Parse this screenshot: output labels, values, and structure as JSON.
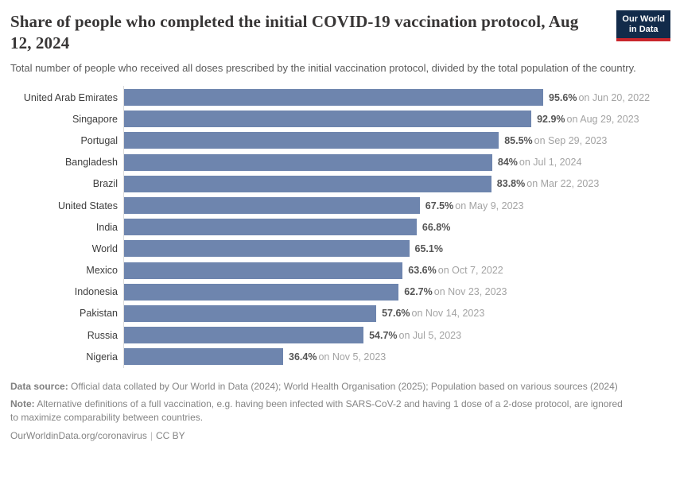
{
  "header": {
    "title": "Share of people who completed the initial COVID-19 vaccination protocol, Aug 12, 2024",
    "subtitle": "Total number of people who received all doses prescribed by the initial vaccination protocol, divided by the total population of the country.",
    "logo": {
      "line1": "Our World",
      "line2": "in Data",
      "navy": "#122b4a",
      "red": "#c9262c"
    }
  },
  "chart_data": {
    "type": "bar",
    "orientation": "horizontal",
    "title": "Share of people who completed the initial COVID-19 vaccination protocol, Aug 12, 2024",
    "xlabel": "",
    "ylabel": "",
    "unit": "%",
    "xlim": [
      0,
      100
    ],
    "grid": false,
    "legend": "none",
    "bar_color": "#6e85ae",
    "categories": [
      "United Arab Emirates",
      "Singapore",
      "Portugal",
      "Bangladesh",
      "Brazil",
      "United States",
      "India",
      "World",
      "Mexico",
      "Indonesia",
      "Pakistan",
      "Russia",
      "Nigeria"
    ],
    "values": [
      95.6,
      92.9,
      85.5,
      84,
      83.8,
      67.5,
      66.8,
      65.1,
      63.6,
      62.7,
      57.6,
      54.7,
      36.4
    ],
    "rows": [
      {
        "country": "United Arab Emirates",
        "value": 95.6,
        "value_label": "95.6%",
        "date_label": "on Jun 20, 2022"
      },
      {
        "country": "Singapore",
        "value": 92.9,
        "value_label": "92.9%",
        "date_label": "on Aug 29, 2023"
      },
      {
        "country": "Portugal",
        "value": 85.5,
        "value_label": "85.5%",
        "date_label": "on Sep 29, 2023"
      },
      {
        "country": "Bangladesh",
        "value": 84,
        "value_label": "84%",
        "date_label": "on Jul 1, 2024"
      },
      {
        "country": "Brazil",
        "value": 83.8,
        "value_label": "83.8%",
        "date_label": "on Mar 22, 2023"
      },
      {
        "country": "United States",
        "value": 67.5,
        "value_label": "67.5%",
        "date_label": "on May 9, 2023"
      },
      {
        "country": "India",
        "value": 66.8,
        "value_label": "66.8%",
        "date_label": ""
      },
      {
        "country": "World",
        "value": 65.1,
        "value_label": "65.1%",
        "date_label": ""
      },
      {
        "country": "Mexico",
        "value": 63.6,
        "value_label": "63.6%",
        "date_label": "on Oct 7, 2022"
      },
      {
        "country": "Indonesia",
        "value": 62.7,
        "value_label": "62.7%",
        "date_label": "on Nov 23, 2023"
      },
      {
        "country": "Pakistan",
        "value": 57.6,
        "value_label": "57.6%",
        "date_label": "on Nov 14, 2023"
      },
      {
        "country": "Russia",
        "value": 54.7,
        "value_label": "54.7%",
        "date_label": "on Jul 5, 2023"
      },
      {
        "country": "Nigeria",
        "value": 36.4,
        "value_label": "36.4%",
        "date_label": "on Nov 5, 2023"
      }
    ]
  },
  "footer": {
    "data_source_label": "Data source:",
    "data_source_text": " Official data collated by Our World in Data (2024); World Health Organisation (2025); Population based on various sources (2024)",
    "note_label": "Note:",
    "note_text": " Alternative definitions of a full vaccination, e.g. having been infected with SARS-CoV-2 and having 1 dose of a 2-dose protocol, are ignored to maximize comparability between countries.",
    "link": "OurWorldinData.org/coronavirus",
    "separator": "|",
    "license": "CC BY"
  }
}
